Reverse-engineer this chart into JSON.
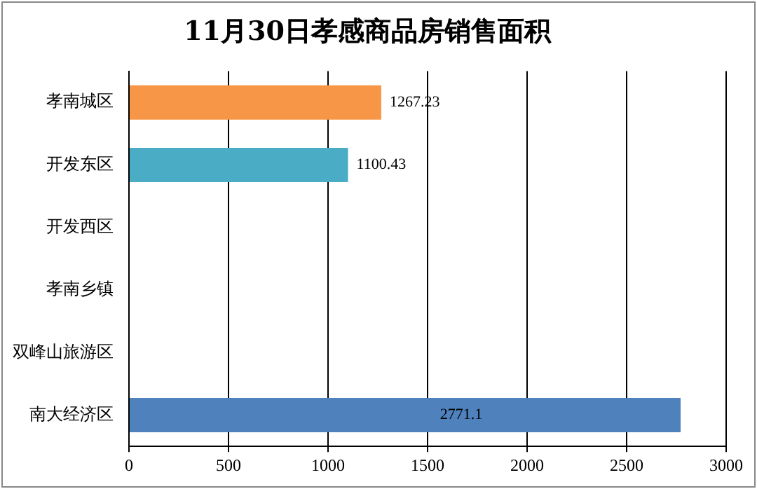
{
  "chart_data": {
    "type": "bar",
    "orientation": "horizontal",
    "title": "11月30日孝感商品房销售面积",
    "categories": [
      "孝南城区",
      "开发东区",
      "开发西区",
      "孝南乡镇",
      "双峰山旅游区",
      "南大经济区"
    ],
    "values": [
      1267.23,
      1100.43,
      null,
      null,
      null,
      2771.1
    ],
    "colors": [
      "#f79646",
      "#4bacc6",
      "#4f81bd",
      "#4f81bd",
      "#4f81bd",
      "#4f81bd"
    ],
    "value_labels": [
      "1267.23",
      "1100.43",
      null,
      null,
      null,
      "2771.1"
    ],
    "xlim": [
      0,
      3000
    ],
    "xticks": [
      0,
      500,
      1000,
      1500,
      2000,
      2500,
      3000
    ],
    "grid": "x",
    "legend": false
  }
}
